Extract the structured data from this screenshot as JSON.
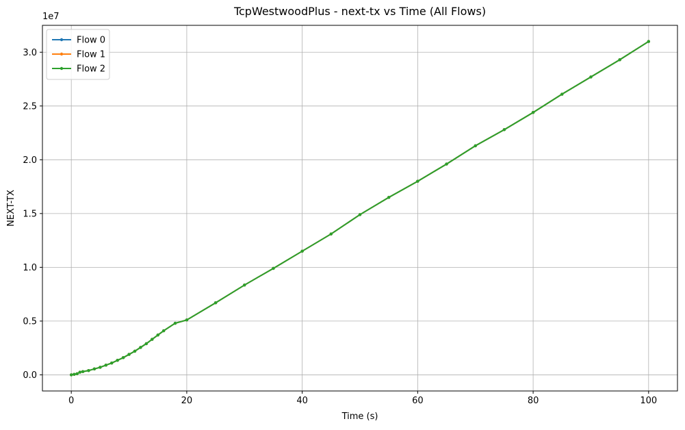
{
  "chart_data": {
    "type": "line",
    "title": "TcpWestwoodPlus - next-tx vs Time (All Flows)",
    "xlabel": "Time (s)",
    "ylabel": "NEXT-TX",
    "y_offset_label": "1e7",
    "xlim": [
      -5,
      105
    ],
    "ylim": [
      -0.15,
      3.25
    ],
    "y_scale_multiplier": 10000000,
    "x_ticks": [
      0,
      20,
      40,
      60,
      80,
      100
    ],
    "x_tick_labels": [
      "0",
      "20",
      "40",
      "60",
      "80",
      "100"
    ],
    "y_ticks": [
      0.0,
      0.5,
      1.0,
      1.5,
      2.0,
      2.5,
      3.0
    ],
    "y_tick_labels": [
      "0.0",
      "0.5",
      "1.0",
      "1.5",
      "2.0",
      "2.5",
      "3.0"
    ],
    "grid": true,
    "legend_position": "top-left",
    "series": [
      {
        "name": "Flow 0",
        "color": "#1f77b4",
        "x": [
          0,
          0.5,
          1,
          1.5,
          2,
          3,
          4,
          5,
          6,
          7,
          8,
          9,
          10,
          11,
          12,
          13,
          14,
          15,
          16,
          18,
          20,
          25,
          30,
          35,
          40,
          45,
          50,
          55,
          60,
          65,
          70,
          75,
          80,
          85,
          90,
          95,
          100
        ],
        "values": [
          0,
          0.005,
          0.01,
          0.025,
          0.03,
          0.04,
          0.055,
          0.07,
          0.09,
          0.11,
          0.135,
          0.16,
          0.19,
          0.22,
          0.255,
          0.29,
          0.33,
          0.37,
          0.41,
          0.48,
          0.51,
          0.67,
          0.835,
          0.99,
          1.15,
          1.31,
          1.49,
          1.65,
          1.8,
          1.96,
          2.13,
          2.28,
          2.44,
          2.61,
          2.77,
          2.93,
          3.1
        ]
      },
      {
        "name": "Flow 1",
        "color": "#ff7f0e",
        "x": [
          0,
          0.5,
          1,
          1.5,
          2,
          3,
          4,
          5,
          6,
          7,
          8,
          9,
          10,
          11,
          12,
          13,
          14,
          15,
          16,
          18,
          20,
          25,
          30,
          35,
          40,
          45,
          50,
          55,
          60,
          65,
          70,
          75,
          80,
          85,
          90,
          95,
          100
        ],
        "values": [
          0,
          0.005,
          0.01,
          0.025,
          0.03,
          0.04,
          0.055,
          0.07,
          0.09,
          0.11,
          0.135,
          0.16,
          0.19,
          0.22,
          0.255,
          0.29,
          0.33,
          0.37,
          0.41,
          0.48,
          0.51,
          0.67,
          0.835,
          0.99,
          1.15,
          1.31,
          1.49,
          1.65,
          1.8,
          1.96,
          2.13,
          2.28,
          2.44,
          2.61,
          2.77,
          2.93,
          3.1
        ]
      },
      {
        "name": "Flow 2",
        "color": "#2ca02c",
        "x": [
          0,
          0.5,
          1,
          1.5,
          2,
          3,
          4,
          5,
          6,
          7,
          8,
          9,
          10,
          11,
          12,
          13,
          14,
          15,
          16,
          18,
          20,
          25,
          30,
          35,
          40,
          45,
          50,
          55,
          60,
          65,
          70,
          75,
          80,
          85,
          90,
          95,
          100
        ],
        "values": [
          0,
          0.005,
          0.01,
          0.025,
          0.03,
          0.04,
          0.055,
          0.07,
          0.09,
          0.11,
          0.135,
          0.16,
          0.19,
          0.22,
          0.255,
          0.29,
          0.33,
          0.37,
          0.41,
          0.48,
          0.51,
          0.67,
          0.835,
          0.99,
          1.15,
          1.31,
          1.49,
          1.65,
          1.8,
          1.96,
          2.13,
          2.28,
          2.44,
          2.61,
          2.77,
          2.93,
          3.1
        ]
      }
    ]
  }
}
